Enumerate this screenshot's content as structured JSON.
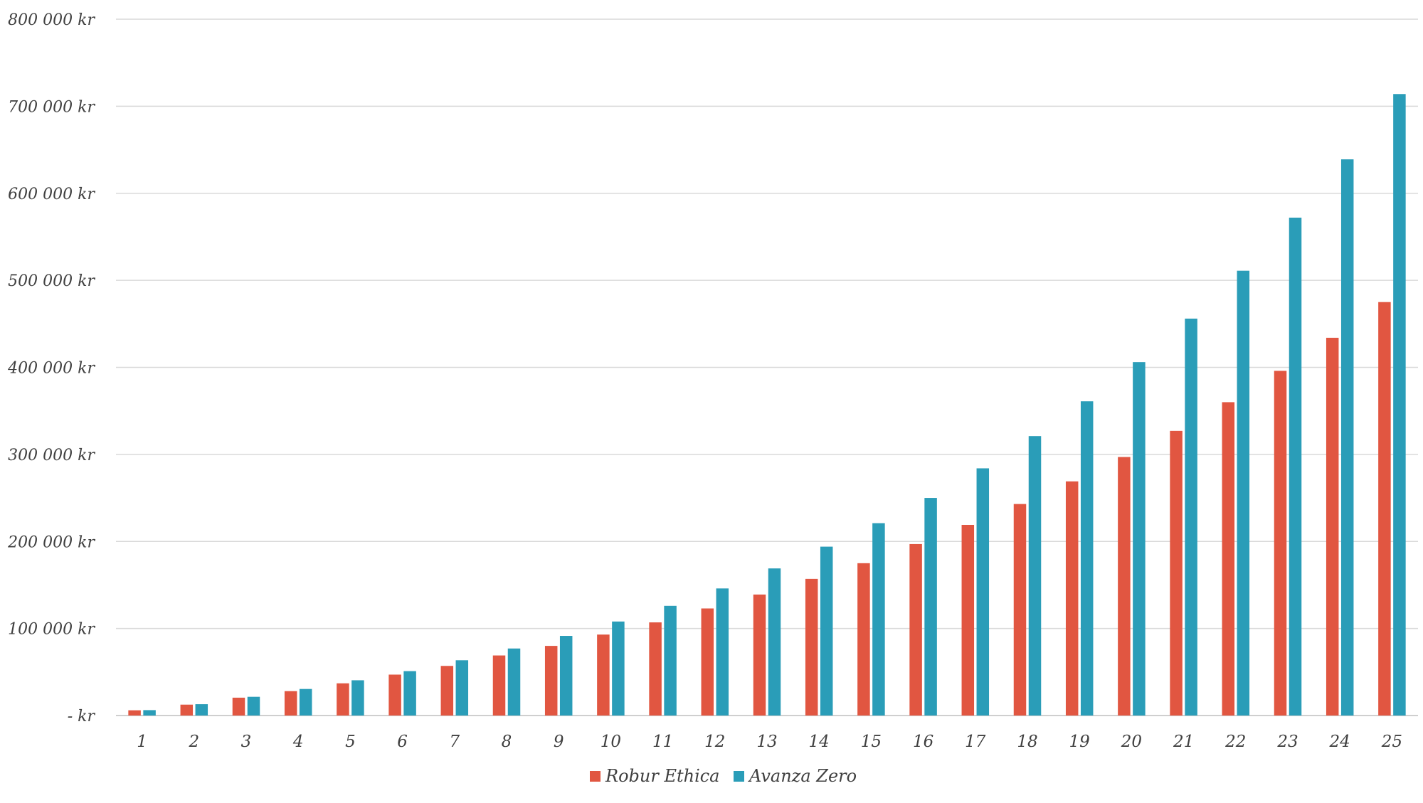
{
  "chart_data": {
    "type": "bar",
    "title": "",
    "xlabel": "",
    "ylabel": "",
    "categories": [
      "1",
      "2",
      "3",
      "4",
      "5",
      "6",
      "7",
      "8",
      "9",
      "10",
      "11",
      "12",
      "13",
      "14",
      "15",
      "16",
      "17",
      "18",
      "19",
      "20",
      "21",
      "22",
      "23",
      "24",
      "25"
    ],
    "series": [
      {
        "name": "Robur Ethica",
        "color": "#E15641",
        "values": [
          6000,
          12500,
          20500,
          28000,
          37000,
          47000,
          57000,
          69000,
          80000,
          93000,
          107000,
          123000,
          139000,
          157000,
          175000,
          197000,
          219000,
          243000,
          269000,
          297000,
          327000,
          360000,
          396000,
          434000,
          475000
        ]
      },
      {
        "name": "Avanza Zero",
        "color": "#2A9DB8",
        "values": [
          6200,
          13000,
          21500,
          30500,
          40500,
          51000,
          63500,
          77000,
          91500,
          108000,
          126000,
          146000,
          169000,
          194000,
          221000,
          250000,
          284000,
          321000,
          361000,
          406000,
          456000,
          511000,
          572000,
          639000,
          714000
        ]
      }
    ],
    "ylim": [
      0,
      800000
    ],
    "y_ticks": [
      {
        "value": 0,
        "label": "-   kr"
      },
      {
        "value": 100000,
        "label": "100 000 kr"
      },
      {
        "value": 200000,
        "label": "200 000 kr"
      },
      {
        "value": 300000,
        "label": "300 000 kr"
      },
      {
        "value": 400000,
        "label": "400 000 kr"
      },
      {
        "value": 500000,
        "label": "500 000 kr"
      },
      {
        "value": 600000,
        "label": "600 000 kr"
      },
      {
        "value": 700000,
        "label": "700 000 kr"
      },
      {
        "value": 800000,
        "label": "800 000 kr"
      }
    ],
    "grid": true,
    "legend": {
      "position": "bottom-center"
    }
  }
}
